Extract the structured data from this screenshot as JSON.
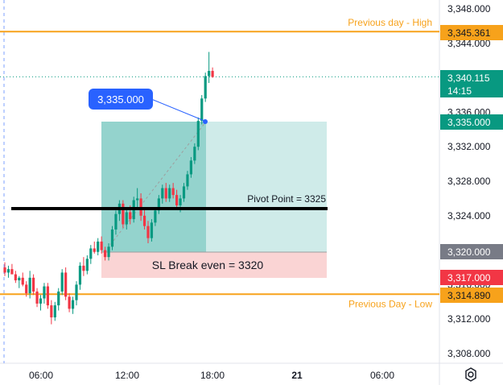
{
  "price_axis": {
    "ticks": [
      "3,348.000",
      "3,344.000",
      "3,340.000",
      "3,336.000",
      "3,332.000",
      "3,328.000",
      "3,324.000",
      "3,320.000",
      "3,316.000",
      "3,312.000",
      "3,308.000"
    ],
    "tick_values": [
      3348,
      3344,
      3340,
      3336,
      3332,
      3328,
      3324,
      3320,
      3316,
      3312,
      3308
    ]
  },
  "time_axis": {
    "labels": [
      "06:00",
      "12:00",
      "18:00",
      "21",
      "06:00"
    ]
  },
  "lines": {
    "prev_day_high": {
      "label": "Previous day - High",
      "value": 3345.361,
      "tag": "3,345.361",
      "color": "#f7a21b"
    },
    "prev_day_low": {
      "label": "Previous Day - Low",
      "value": 3314.89,
      "tag": "3,314.890",
      "color": "#f7a21b"
    },
    "pivot": {
      "label": "Pivot Point = 3325",
      "value": 3324.7
    },
    "current": {
      "value": 3340.115,
      "tag": "3,340.115",
      "countdown": "14:15",
      "color": "#089981"
    }
  },
  "position": {
    "entry_tag": "3,335.000",
    "entry_value": 3335.0,
    "stop_tag": "3,320.000",
    "stop_value": 3320.0,
    "sl_box_label": "SL Break even = 3320",
    "red_tag": "3,317.000",
    "callout": "3,335.000"
  },
  "colors": {
    "up": "#089981",
    "down": "#f23645",
    "tp_fill": "#26a69a",
    "sl_fill": "#f7b7b7",
    "callout": "#2962ff",
    "orange": "#f7a21b",
    "gray_tag": "#787b86"
  },
  "icons": {
    "settings": "gear-icon"
  }
}
